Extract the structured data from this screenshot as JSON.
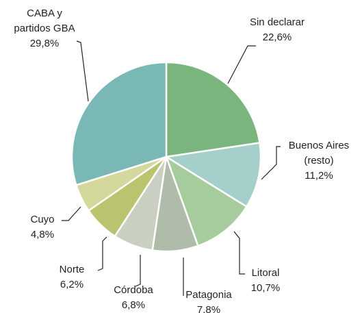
{
  "chart_data": {
    "type": "pie",
    "categories": [
      "Sin declarar",
      "Buenos Aires (resto)",
      "Litoral",
      "Patagonia",
      "Córdoba",
      "Norte",
      "Cuyo",
      "CABA y partidos GBA"
    ],
    "values": [
      22.6,
      11.2,
      10.7,
      7.8,
      6.8,
      6.2,
      4.8,
      29.8
    ],
    "value_labels": [
      "22,6%",
      "11,2%",
      "10,7%",
      "7,8%",
      "6,8%",
      "6,2%",
      "4,8%",
      "29,8%"
    ],
    "colors": [
      "#7ab57d",
      "#a5cfca",
      "#a6cc9e",
      "#b0bcaa",
      "#c9d0c2",
      "#bac46e",
      "#d5d89c",
      "#79b8b5"
    ]
  }
}
